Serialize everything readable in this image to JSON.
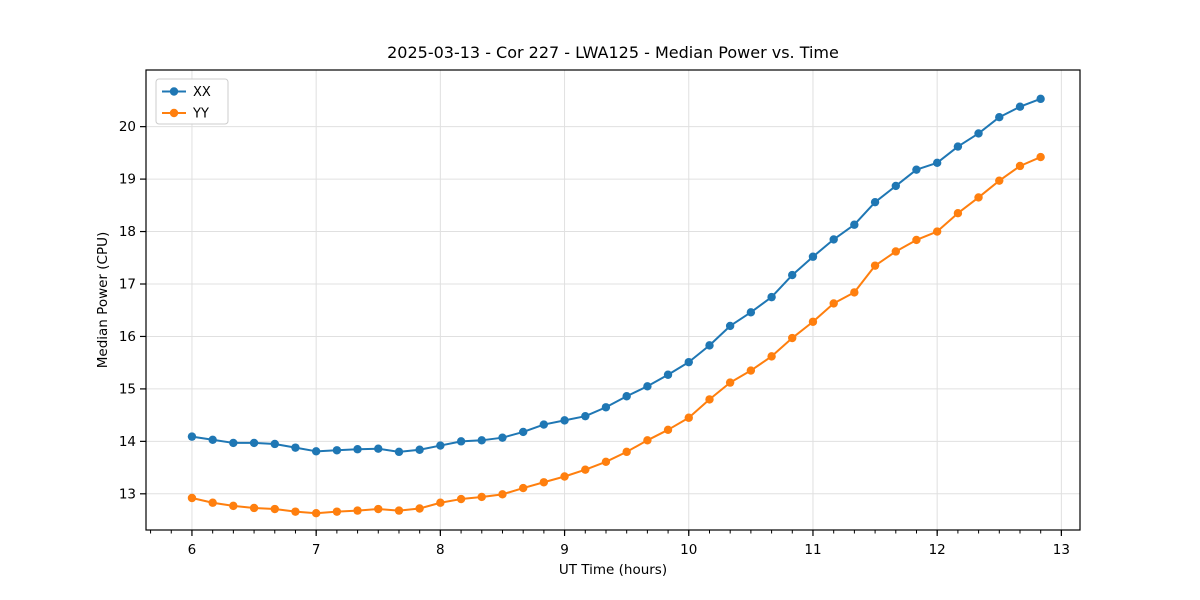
{
  "window": {
    "background": "#ffffff"
  },
  "chart_data": {
    "type": "line",
    "title": "2025-03-13 - Cor 227 - LWA125 - Median Power vs. Time",
    "xlabel": "UT Time (hours)",
    "ylabel": "Median Power (CPU)",
    "xlim": [
      5.63,
      13.15
    ],
    "ylim": [
      12.31,
      21.08
    ],
    "x_major_ticks": [
      6,
      7,
      8,
      9,
      10,
      11,
      12,
      13
    ],
    "x_tick_labels": [
      "6",
      "7",
      "8",
      "9",
      "10",
      "11",
      "12",
      "13"
    ],
    "x_minor_tick_step_hours": 0.16667,
    "y_major_ticks": [
      13,
      14,
      15,
      16,
      17,
      18,
      19,
      20
    ],
    "y_tick_labels": [
      "13",
      "14",
      "15",
      "16",
      "17",
      "18",
      "19",
      "20"
    ],
    "grid": true,
    "grid_color": "#e0e0e0",
    "axis_color": "#000000",
    "legend": {
      "position": "upper-left",
      "entries": [
        "XX",
        "YY"
      ]
    },
    "x": [
      6.0,
      6.167,
      6.333,
      6.5,
      6.667,
      6.833,
      7.0,
      7.167,
      7.333,
      7.5,
      7.667,
      7.833,
      8.0,
      8.167,
      8.333,
      8.5,
      8.667,
      8.833,
      9.0,
      9.167,
      9.333,
      9.5,
      9.667,
      9.833,
      10.0,
      10.167,
      10.333,
      10.5,
      10.667,
      10.833,
      11.0,
      11.167,
      11.333,
      11.5,
      11.667,
      11.833,
      12.0,
      12.167,
      12.333,
      12.5,
      12.667,
      12.833
    ],
    "series": [
      {
        "name": "XX",
        "color": "#1f77b4",
        "marker": "circle",
        "values": [
          14.09,
          14.03,
          13.97,
          13.97,
          13.95,
          13.88,
          13.81,
          13.83,
          13.85,
          13.86,
          13.8,
          13.84,
          13.92,
          14.0,
          14.02,
          14.07,
          14.18,
          14.32,
          14.4,
          14.48,
          14.65,
          14.86,
          15.05,
          15.27,
          15.51,
          15.83,
          16.2,
          16.46,
          16.75,
          17.17,
          17.52,
          17.85,
          18.13,
          18.56,
          18.87,
          19.18,
          19.31,
          19.62,
          19.87,
          20.18,
          20.38,
          20.53
        ]
      },
      {
        "name": "YY",
        "color": "#ff7f0e",
        "marker": "circle",
        "values": [
          12.92,
          12.83,
          12.77,
          12.73,
          12.71,
          12.66,
          12.63,
          12.66,
          12.68,
          12.71,
          12.68,
          12.72,
          12.83,
          12.9,
          12.94,
          12.99,
          13.11,
          13.22,
          13.33,
          13.46,
          13.61,
          13.8,
          14.02,
          14.22,
          14.45,
          14.8,
          15.12,
          15.35,
          15.62,
          15.97,
          16.28,
          16.63,
          16.84,
          17.35,
          17.62,
          17.84,
          18.0,
          18.35,
          18.65,
          18.97,
          19.25,
          19.42
        ]
      }
    ]
  }
}
